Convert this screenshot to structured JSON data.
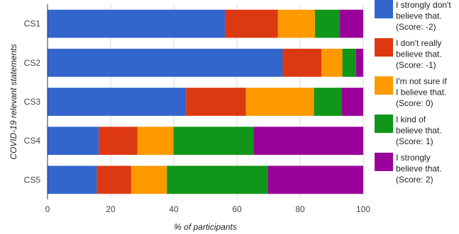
{
  "chart_data": {
    "type": "bar",
    "orientation": "horizontal",
    "stacked": true,
    "title": "",
    "xlabel": "% of participants",
    "ylabel": "COVID-19 relevant statements",
    "xlim": [
      0,
      100
    ],
    "xticks": [
      0,
      20,
      40,
      60,
      80,
      100
    ],
    "grid": true,
    "legend_position": "right",
    "categories": [
      "CS1",
      "CS2",
      "CS3",
      "CS4",
      "CS5"
    ],
    "series": [
      {
        "name": "I strongly don't believe that. (Score: -2)",
        "legend_lines": [
          "I strongly don't",
          "believe that.",
          "(Score: -2)"
        ],
        "color": "#3366cc",
        "values": [
          56.2,
          74.5,
          43.9,
          16.2,
          15.6
        ]
      },
      {
        "name": "I don't really believe that. (Score: -1)",
        "legend_lines": [
          "I don't really",
          "believe that.",
          "(Score: -1)"
        ],
        "color": "#dc3912",
        "values": [
          16.8,
          12.3,
          18.9,
          12.3,
          10.9
        ]
      },
      {
        "name": "I'm not sure if I believe that. (Score: 0)",
        "legend_lines": [
          "I'm not sure if",
          "I believe that.",
          "(Score: 0)"
        ],
        "color": "#ff9900",
        "values": [
          11.7,
          6.6,
          21.6,
          11.4,
          11.3
        ]
      },
      {
        "name": "I kind of believe that. (Score: 1)",
        "legend_lines": [
          "I kind of",
          "believe that.",
          "(Score: 1)"
        ],
        "color": "#109618",
        "values": [
          7.9,
          4.3,
          8.7,
          25.4,
          32.0
        ]
      },
      {
        "name": "I strongly believe that. (Score: 2)",
        "legend_lines": [
          "I strongly",
          "believe that.",
          "(Score: 2)"
        ],
        "color": "#990099",
        "values": [
          7.4,
          2.3,
          6.9,
          34.7,
          30.2
        ]
      }
    ]
  }
}
